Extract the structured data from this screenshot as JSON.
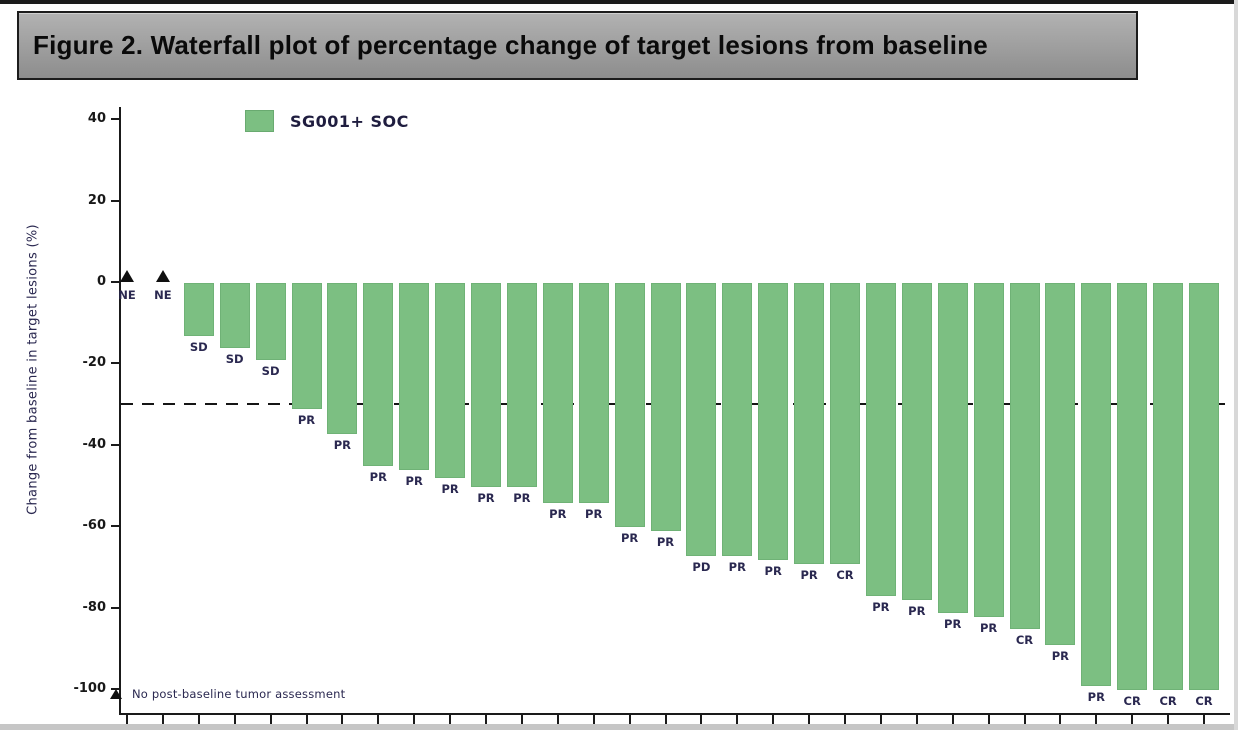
{
  "figure_title": "Figure 2. Waterfall plot of percentage change of target lesions from baseline",
  "legend": {
    "label": "SG001+ SOC",
    "swatch_color": "#7cbf82"
  },
  "footnote": {
    "marker": "triangle",
    "text": "No post-baseline tumor assessment"
  },
  "colors": {
    "bar_fill": "#7cbf82",
    "axis": "#1a1a1a",
    "label_text": "#2a2850",
    "title_bar_fill": "#9c9c9c",
    "title_bar_border": "#1c1c1c"
  },
  "chart_data": {
    "type": "bar",
    "title": "Figure 2. Waterfall plot of percentage change of target lesions from baseline",
    "xlabel": "",
    "ylabel": "Change from baseline in target lesions (%)",
    "ylim": [
      -107,
      44
    ],
    "grid": false,
    "legend_position": "top-left-inside",
    "reference_line_y": -30,
    "reference_line_style": "dashed",
    "y_ticks": [
      {
        "value": 40,
        "label": "40"
      },
      {
        "value": 20,
        "label": "20"
      },
      {
        "value": 0,
        "label": "0"
      },
      {
        "value": -20,
        "label": "-20"
      },
      {
        "value": -40,
        "label": "-40"
      },
      {
        "value": -60,
        "label": "-60"
      },
      {
        "value": -80,
        "label": "-80"
      },
      {
        "value": -100,
        "label": "-100"
      }
    ],
    "series": [
      {
        "name": "SG001+ SOC",
        "color": "#7cbf82"
      }
    ],
    "points": [
      {
        "label": "NE",
        "value": 0,
        "marker": "triangle"
      },
      {
        "label": "NE",
        "value": 0,
        "marker": "triangle"
      },
      {
        "label": "SD",
        "value": -13
      },
      {
        "label": "SD",
        "value": -16
      },
      {
        "label": "SD",
        "value": -19
      },
      {
        "label": "PR",
        "value": -31
      },
      {
        "label": "PR",
        "value": -37
      },
      {
        "label": "PR",
        "value": -45
      },
      {
        "label": "PR",
        "value": -46
      },
      {
        "label": "PR",
        "value": -48
      },
      {
        "label": "PR",
        "value": -50
      },
      {
        "label": "PR",
        "value": -50
      },
      {
        "label": "PR",
        "value": -54
      },
      {
        "label": "PR",
        "value": -54
      },
      {
        "label": "PR",
        "value": -60
      },
      {
        "label": "PR",
        "value": -61
      },
      {
        "label": "PD",
        "value": -67
      },
      {
        "label": "PR",
        "value": -67
      },
      {
        "label": "PR",
        "value": -68
      },
      {
        "label": "PR",
        "value": -69
      },
      {
        "label": "CR",
        "value": -69
      },
      {
        "label": "PR",
        "value": -77
      },
      {
        "label": "PR",
        "value": -78
      },
      {
        "label": "PR",
        "value": -81
      },
      {
        "label": "PR",
        "value": -82
      },
      {
        "label": "CR",
        "value": -85
      },
      {
        "label": "PR",
        "value": -89
      },
      {
        "label": "PR",
        "value": -99
      },
      {
        "label": "CR",
        "value": -100
      },
      {
        "label": "CR",
        "value": -100
      },
      {
        "label": "CR",
        "value": -100
      }
    ]
  }
}
